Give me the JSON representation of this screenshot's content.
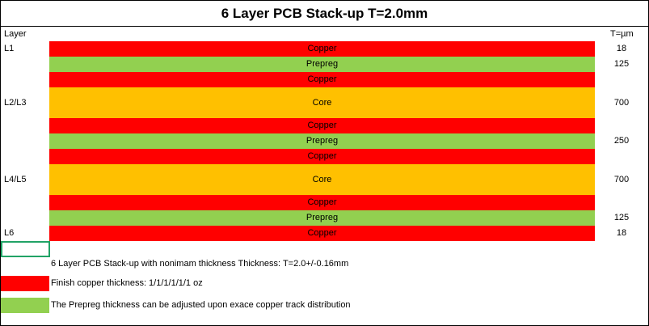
{
  "header": {
    "title": "6 Layer PCB Stack-up T=2.0mm",
    "layer_label": "Layer",
    "thickness_label": "T=µm"
  },
  "layers": [
    {
      "label": "L1",
      "name": "Copper",
      "color": "#ff0000",
      "thickness": 18
    },
    {
      "name": "Prepreg",
      "color": "#92d050",
      "thickness": 125
    },
    {
      "name": "Copper",
      "color": "#ff0000"
    },
    {
      "label": "L2/L3",
      "name": "Core",
      "color": "#ffc000",
      "thickness": 700
    },
    {
      "name": "Copper",
      "color": "#ff0000"
    },
    {
      "name": "Prepreg",
      "color": "#92d050",
      "thickness": 250
    },
    {
      "name": "Copper",
      "color": "#ff0000"
    },
    {
      "label": "L4/L5",
      "name": "Core",
      "color": "#ffc000",
      "thickness": 700
    },
    {
      "name": "Copper",
      "color": "#ff0000"
    },
    {
      "name": "Prepreg",
      "color": "#92d050",
      "thickness": 125
    },
    {
      "label": "L6",
      "name": "Copper",
      "color": "#ff0000",
      "thickness": 18
    }
  ],
  "notes": [
    {
      "text": "6 Layer PCB Stack-up with nonimam thickness Thickness: T=2.0+/-0.16mm"
    },
    {
      "text": "Finish copper thickness: 1/1/1/1/1/1 oz",
      "color": "#ff0000"
    },
    {
      "text": "The Prepreg thickness can be adjusted upon exace copper track distribution",
      "color": "#92d050"
    }
  ]
}
